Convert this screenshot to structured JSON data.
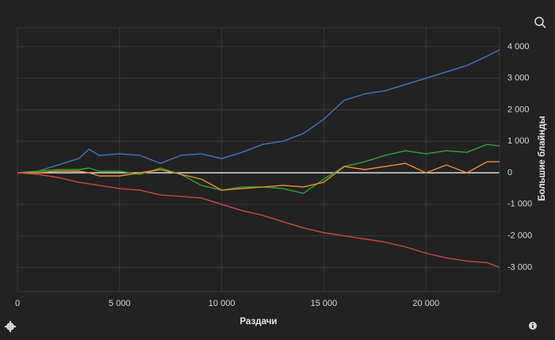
{
  "chart_data": {
    "type": "line",
    "x_label": "Раздачи",
    "y_label": "Большие блайнды",
    "x": [
      0,
      1000,
      2000,
      3000,
      3500,
      4000,
      5000,
      6000,
      7000,
      8000,
      9000,
      10000,
      11000,
      12000,
      13000,
      14000,
      15000,
      16000,
      17000,
      18000,
      19000,
      20000,
      21000,
      22000,
      23000,
      23600
    ],
    "series": [
      {
        "color": "#3a78c0",
        "values": [
          0,
          50,
          250,
          450,
          750,
          550,
          600,
          550,
          300,
          550,
          600,
          450,
          650,
          900,
          1000,
          1250,
          1700,
          2300,
          2500,
          2600,
          2800,
          3000,
          3200,
          3400,
          3700,
          3900
        ]
      },
      {
        "color": "#2da52d",
        "values": [
          0,
          50,
          100,
          100,
          150,
          50,
          50,
          -50,
          150,
          -50,
          -400,
          -550,
          -450,
          -450,
          -500,
          -650,
          -200,
          200,
          350,
          550,
          700,
          600,
          700,
          650,
          900,
          850
        ]
      },
      {
        "color": "#ee8c2a",
        "values": [
          0,
          0,
          50,
          50,
          0,
          -100,
          -100,
          0,
          100,
          -50,
          -200,
          -550,
          -500,
          -450,
          -400,
          -450,
          -300,
          200,
          100,
          200,
          300,
          0,
          250,
          0,
          350,
          350
        ]
      },
      {
        "color": "#c94a3c",
        "values": [
          0,
          -50,
          -150,
          -300,
          -350,
          -400,
          -500,
          -550,
          -700,
          -750,
          -800,
          -1000,
          -1200,
          -1350,
          -1550,
          -1750,
          -1900,
          -2000,
          -2100,
          -2200,
          -2350,
          -2550,
          -2700,
          -2800,
          -2850,
          -3000
        ]
      }
    ],
    "xlim": [
      0,
      23600
    ],
    "ylim": [
      -3770,
      4600
    ],
    "xticks": [
      0,
      {
        "value": 5000,
        "label": "5 000"
      },
      {
        "value": 10000,
        "label": "10 000"
      },
      {
        "value": 15000,
        "label": "15 000"
      },
      {
        "value": 20000,
        "label": "20 000"
      }
    ],
    "yticks": [
      {
        "value": -3000,
        "label": "-3 000"
      },
      {
        "value": -2000,
        "label": "-2 000"
      },
      {
        "value": -1000,
        "label": "-1 000"
      },
      0,
      {
        "value": 1000,
        "label": "1 000"
      },
      {
        "value": 2000,
        "label": "2 000"
      },
      {
        "value": 3000,
        "label": "3 000"
      },
      {
        "value": 4000,
        "label": "4 000"
      }
    ],
    "grid": true,
    "zero_line_color": "#ffffff"
  }
}
